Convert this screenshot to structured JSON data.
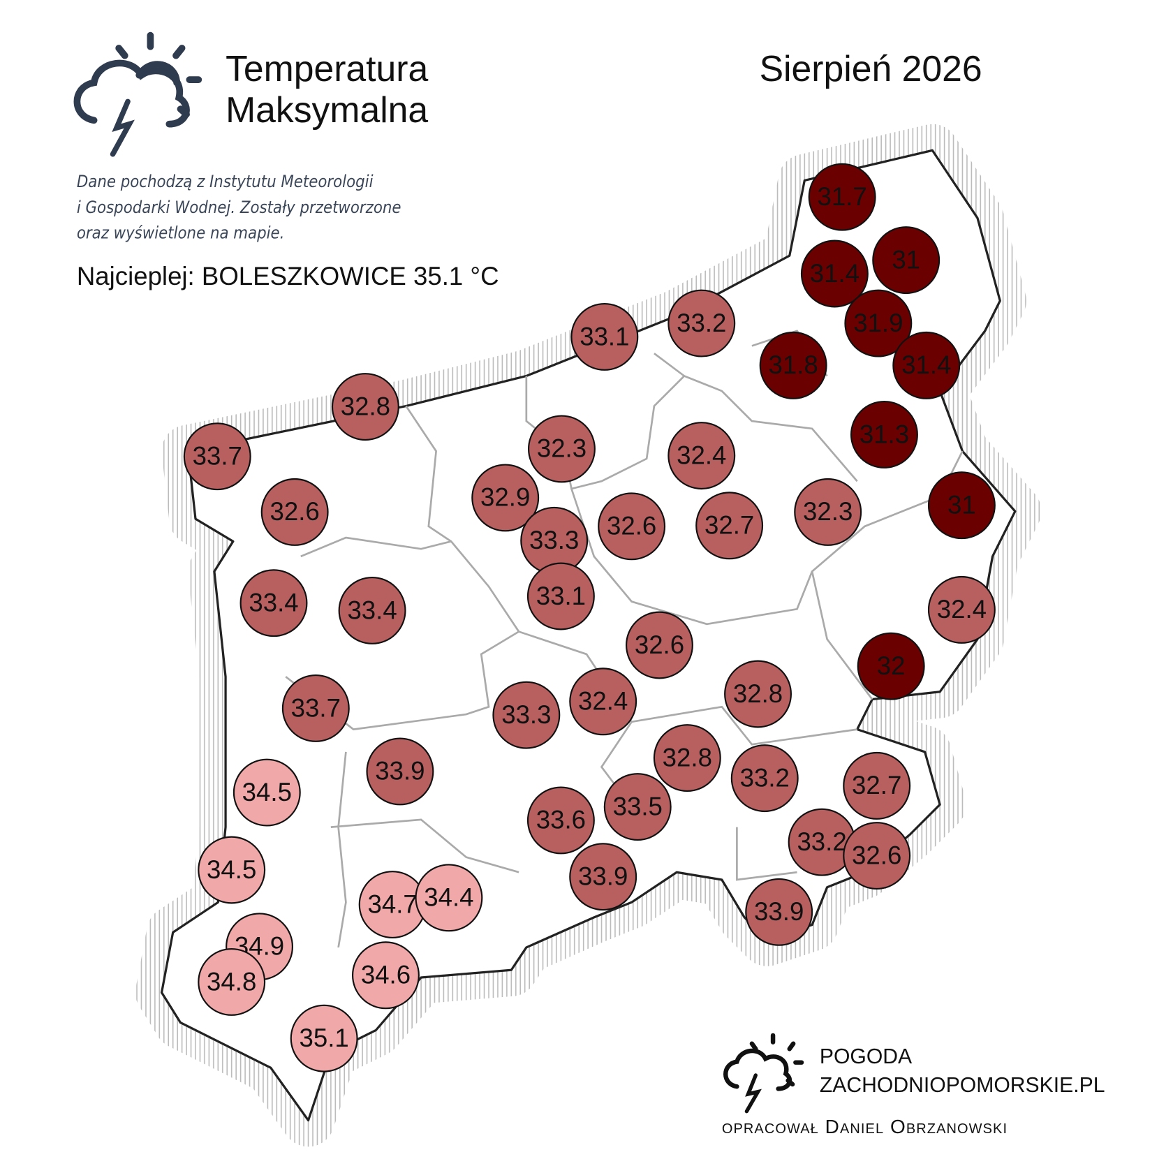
{
  "header": {
    "title_lines": [
      "Temperatura",
      "Maksymalna"
    ],
    "period": "Sierpień 2026",
    "description_lines": [
      "Dane pochodzą z Instytutu Meteorologii",
      "i Gospodarki Wodnej. Zostały przetworzone",
      "oraz wyświetlone na mapie."
    ],
    "hottest": "Najcieplej: BOLESZKOWICE 35.1 °C"
  },
  "stations": {
    "values": [
      31.7,
      31,
      31.4,
      31.9,
      31.8,
      31.4,
      31.3,
      31,
      32,
      33.1,
      33.2,
      32.8,
      33.7,
      32.3,
      32.4,
      32.9,
      32.6,
      32.6,
      32.7,
      32.3,
      33.3,
      33.4,
      33.4,
      33.1,
      32.4,
      32.6,
      33.7,
      33.3,
      32.4,
      32.8,
      33.9,
      34.5,
      32.8,
      33.2,
      32.7,
      33.5,
      33.6,
      33.2,
      32.6,
      34.5,
      33.9,
      33.9,
      34.7,
      34.4,
      34.9,
      34.8,
      34.6,
      35.1
    ]
  },
  "footer": {
    "brand_lines": [
      "POGODA",
      "ZACHODNIOPOMORSKIE.PL"
    ],
    "credit": "opracował Daniel Obrzanowski"
  }
}
